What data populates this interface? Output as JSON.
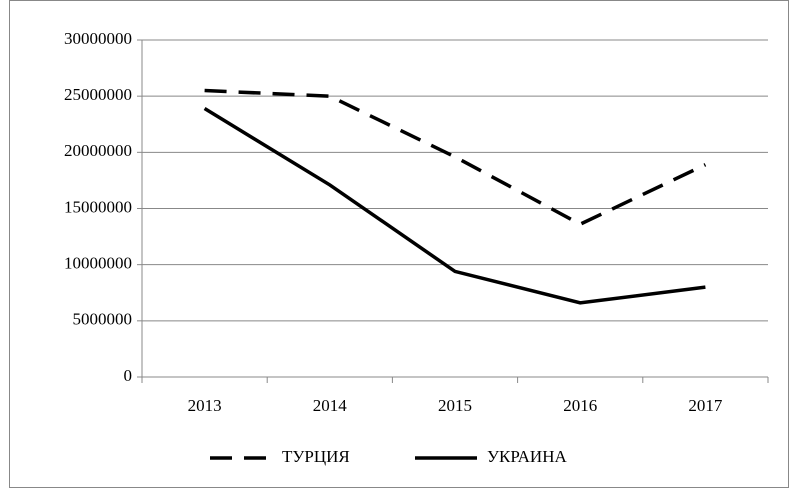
{
  "chart_data": {
    "type": "line",
    "categories": [
      "2013",
      "2014",
      "2015",
      "2016",
      "2017"
    ],
    "series": [
      {
        "name": "ТУРЦИЯ",
        "color": "#000000",
        "style": "dashed",
        "values": [
          25500000,
          25000000,
          19600000,
          13600000,
          18900000
        ]
      },
      {
        "name": "УКРАИНА",
        "color": "#000000",
        "style": "solid",
        "values": [
          23900000,
          17100000,
          9400000,
          6600000,
          8000000
        ]
      }
    ],
    "ylim": [
      0,
      30000000
    ],
    "yticks": [
      0,
      5000000,
      10000000,
      15000000,
      20000000,
      25000000,
      30000000
    ],
    "grid": true,
    "legend": "bottom"
  }
}
